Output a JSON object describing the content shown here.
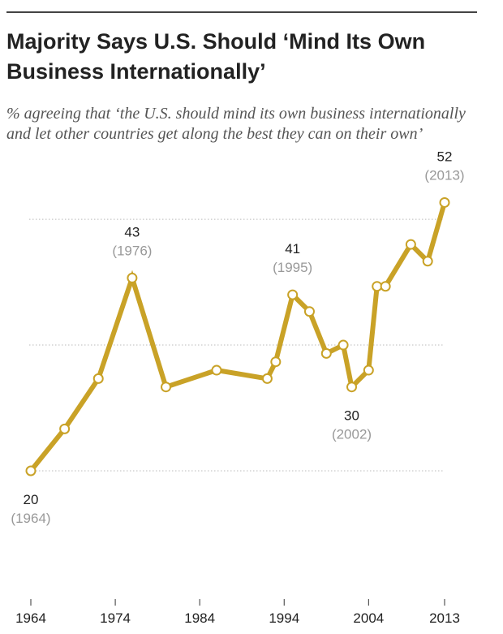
{
  "chart_data": {
    "type": "line",
    "title": "Majority Says U.S. Should ‘Mind Its Own Business Internationally’",
    "subtitle": "% agreeing that ‘the U.S. should mind its own business internationally and let other countries get along the best they can on their own’",
    "xlabel": "",
    "ylabel": "",
    "color": "#c9a227",
    "ylim": [
      10,
      58
    ],
    "xlim": [
      1964,
      2013
    ],
    "grid": true,
    "gridlines": [
      20,
      35,
      50
    ],
    "x_ticks": [
      "1964",
      "1974",
      "1984",
      "1994",
      "2004",
      "2013"
    ],
    "series": [
      {
        "points": [
          {
            "x": 1964,
            "y": 20
          },
          {
            "x": 1968,
            "y": 25
          },
          {
            "x": 1972,
            "y": 31
          },
          {
            "x": 1976,
            "y": 43
          },
          {
            "x": 1980,
            "y": 30
          },
          {
            "x": 1986,
            "y": 32
          },
          {
            "x": 1992,
            "y": 31
          },
          {
            "x": 1993,
            "y": 33
          },
          {
            "x": 1995,
            "y": 41
          },
          {
            "x": 1997,
            "y": 39
          },
          {
            "x": 1999,
            "y": 34
          },
          {
            "x": 2001,
            "y": 35
          },
          {
            "x": 2002,
            "y": 30
          },
          {
            "x": 2004,
            "y": 32
          },
          {
            "x": 2005,
            "y": 42
          },
          {
            "x": 2006,
            "y": 42
          },
          {
            "x": 2009,
            "y": 47
          },
          {
            "x": 2011,
            "y": 45
          },
          {
            "x": 2013,
            "y": 52
          }
        ]
      }
    ],
    "annotations": [
      {
        "x": 1964,
        "y": 20,
        "value": "20",
        "year": "(1964)",
        "position": "below"
      },
      {
        "x": 1976,
        "y": 43,
        "value": "43",
        "year": "(1976)",
        "position": "above"
      },
      {
        "x": 1995,
        "y": 41,
        "value": "41",
        "year": "(1995)",
        "position": "above"
      },
      {
        "x": 2002,
        "y": 30,
        "value": "30",
        "year": "(2002)",
        "position": "below"
      },
      {
        "x": 2013,
        "y": 52,
        "value": "52",
        "year": "(2013)",
        "position": "above"
      }
    ]
  }
}
